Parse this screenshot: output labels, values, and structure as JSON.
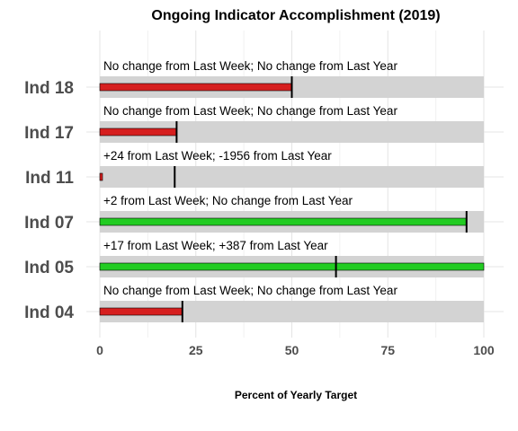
{
  "chart_data": {
    "type": "bar",
    "title": "Ongoing Indicator Accomplishment (2019)",
    "xlabel": "Percent of Yearly Target",
    "ylabel": "",
    "xlim": [
      0,
      100
    ],
    "xticks": [
      "0",
      "25",
      "50",
      "75",
      "100"
    ],
    "grid": true,
    "background_track_value": 100,
    "colors": {
      "below": "#d61f1f",
      "above": "#22cc22",
      "track": "#d3d3d3",
      "marker": "#000000"
    },
    "indicators": [
      {
        "label": "Ind 18",
        "value": 50,
        "target_marker": 50,
        "status": "below",
        "note": "No change from Last Week; No change from Last Year"
      },
      {
        "label": "Ind 17",
        "value": 20,
        "target_marker": 20,
        "status": "below",
        "note": "No change from Last Week; No change from Last Year"
      },
      {
        "label": "Ind 11",
        "value": 0.7,
        "target_marker": 19.5,
        "status": "below",
        "note": "+24 from Last Week; -1956 from Last Year"
      },
      {
        "label": "Ind 07",
        "value": 95.5,
        "target_marker": 95.5,
        "status": "above",
        "note": "+2 from Last Week; No change from Last Year"
      },
      {
        "label": "Ind 05",
        "value": 100,
        "target_marker": 61.5,
        "status": "above",
        "note": "+17 from Last Week; +387 from Last Year"
      },
      {
        "label": "Ind 04",
        "value": 21.5,
        "target_marker": 21.5,
        "status": "below",
        "note": "No change from Last Week; No change from Last Year"
      }
    ]
  }
}
